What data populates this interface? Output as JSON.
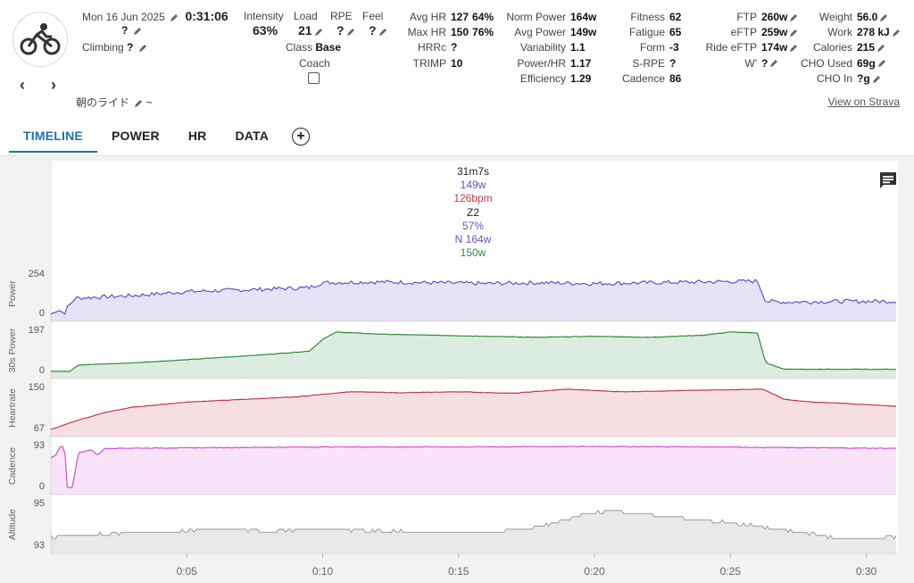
{
  "header": {
    "date": "Mon 16 Jun 2025",
    "duration": "0:31:06",
    "subtitle_value": "?",
    "climbing_label": "Climbing",
    "climbing_value": "?",
    "title": "朝のライド",
    "title_suffix": "~"
  },
  "metrics_a": {
    "intensity_label": "Intensity",
    "intensity_value": "63%",
    "load_label": "Load",
    "load_value": "21",
    "rpe_label": "RPE",
    "rpe_value": "?",
    "feel_label": "Feel",
    "feel_value": "?",
    "class_label": "Class",
    "class_value": "Base",
    "coach_label": "Coach"
  },
  "metrics_hr": [
    {
      "label": "Avg HR",
      "value": "127",
      "extra": "64%"
    },
    {
      "label": "Max HR",
      "value": "150",
      "extra": "76%"
    },
    {
      "label": "HRRc",
      "value": "?",
      "extra": ""
    },
    {
      "label": "TRIMP",
      "value": "10",
      "extra": ""
    }
  ],
  "metrics_power": [
    {
      "label": "Norm Power",
      "value": "164w"
    },
    {
      "label": "Avg Power",
      "value": "149w"
    },
    {
      "label": "Variability",
      "value": "1.1"
    },
    {
      "label": "Power/HR",
      "value": "1.17"
    },
    {
      "label": "Efficiency",
      "value": "1.29"
    }
  ],
  "metrics_fitness": [
    {
      "label": "Fitness",
      "value": "62"
    },
    {
      "label": "Fatigue",
      "value": "65"
    },
    {
      "label": "Form",
      "value": "-3"
    },
    {
      "label": "S-RPE",
      "value": "?"
    },
    {
      "label": "Cadence",
      "value": "86"
    }
  ],
  "metrics_ftp": [
    {
      "label": "FTP",
      "value": "260w"
    },
    {
      "label": "eFTP",
      "value": "259w"
    },
    {
      "label": "Ride eFTP",
      "value": "174w"
    },
    {
      "label": "W'",
      "value": "?"
    }
  ],
  "metrics_body": [
    {
      "label": "Weight",
      "value": "56.0"
    },
    {
      "label": "Work",
      "value": "278 kJ"
    },
    {
      "label": "Calories",
      "value": "215"
    },
    {
      "label": "CHO Used",
      "value": "69g"
    },
    {
      "label": "CHO In",
      "value": "?g"
    }
  ],
  "strava_link": "View on Strava",
  "tabs": [
    {
      "label": "TIMELINE",
      "active": true
    },
    {
      "label": "POWER",
      "active": false
    },
    {
      "label": "HR",
      "active": false
    },
    {
      "label": "DATA",
      "active": false
    }
  ],
  "tooltip": {
    "time": "31m7s",
    "power": "149w",
    "hr": "126bpm",
    "zone": "Z2",
    "pct": "57%",
    "np": "N 164w",
    "avg30": "150w"
  },
  "colors": {
    "power": "#6a4fc8",
    "power30": "#2e8a3e",
    "heartrate": "#c0394b",
    "cadence": "#d24fd6",
    "altitude": "#9a9a9a",
    "accent": "#1f6fb5"
  },
  "chart_data": {
    "type": "line",
    "x_ticks": [
      "0:05",
      "0:10",
      "0:15",
      "0:20",
      "0:25",
      "0:30"
    ],
    "x_tick_minutes": [
      5,
      10,
      15,
      20,
      25,
      30
    ],
    "x_range_minutes": [
      0,
      31.1
    ],
    "panels": [
      {
        "name": "Power",
        "ymax_label": "254",
        "ymin_label": "0",
        "ylim": [
          0,
          254
        ],
        "x": [
          0,
          0.3,
          0.5,
          0.6,
          0.9,
          3,
          5,
          7,
          9.5,
          10,
          12,
          14,
          16,
          18,
          20,
          22,
          24,
          26,
          26.3,
          27,
          29,
          31
        ],
        "values": [
          0,
          30,
          0,
          40,
          100,
          115,
          140,
          150,
          165,
          195,
          200,
          195,
          190,
          195,
          190,
          195,
          200,
          205,
          80,
          75,
          80,
          80
        ]
      },
      {
        "name": "30s Power",
        "ymax_label": "197",
        "ymin_label": "0",
        "ylim": [
          0,
          197
        ],
        "x": [
          0,
          0.7,
          1,
          3,
          5,
          8,
          9.5,
          10,
          10.5,
          12,
          14,
          16,
          18,
          20,
          22,
          24,
          25,
          26,
          26.3,
          27,
          31
        ],
        "values": [
          0,
          0,
          30,
          40,
          55,
          80,
          95,
          150,
          185,
          175,
          170,
          165,
          160,
          165,
          160,
          170,
          185,
          180,
          40,
          10,
          10
        ]
      },
      {
        "name": "Heartrate",
        "ymax_label": "150",
        "ymin_label": "67",
        "ylim": [
          67,
          150
        ],
        "x": [
          0,
          1,
          2,
          3,
          5,
          7,
          9,
          11,
          13,
          15,
          17,
          19,
          21,
          23,
          25,
          26.2,
          27,
          28,
          29,
          30,
          31
        ],
        "values": [
          67,
          85,
          100,
          110,
          120,
          125,
          130,
          140,
          138,
          140,
          137,
          145,
          140,
          142,
          144,
          145,
          125,
          120,
          118,
          115,
          112
        ]
      },
      {
        "name": "Cadence",
        "ymax_label": "93",
        "ymin_label": "0",
        "ylim": [
          0,
          93
        ],
        "x": [
          0,
          0.2,
          0.3,
          0.5,
          0.6,
          0.8,
          1,
          1.5,
          1.7,
          2,
          5,
          10,
          15,
          20,
          25,
          26,
          31
        ],
        "values": [
          65,
          70,
          88,
          90,
          0,
          0,
          75,
          82,
          70,
          85,
          86,
          88,
          88,
          89,
          88,
          87,
          85
        ]
      },
      {
        "name": "Altitude",
        "ymax_label": "95",
        "ymin_label": "93",
        "ylim": [
          92.5,
          95.3
        ],
        "x": [
          0,
          2,
          4,
          6,
          8,
          10,
          12,
          14,
          16,
          17.5,
          18.5,
          19.5,
          20.5,
          22,
          24,
          26,
          28,
          29,
          31
        ],
        "values": [
          93.1,
          93.3,
          93.4,
          93.6,
          93.5,
          93.6,
          93.5,
          93.4,
          93.4,
          93.6,
          94.0,
          94.5,
          94.8,
          94.5,
          94.2,
          93.8,
          93.3,
          93.0,
          93.1
        ]
      }
    ]
  }
}
